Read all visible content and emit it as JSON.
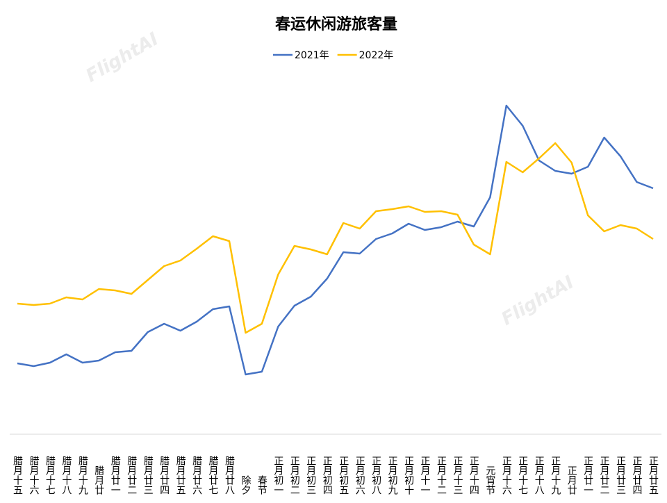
{
  "chart_data": {
    "type": "line",
    "title": "春运休闲游旅客量",
    "watermark": "FlightAI",
    "categories": [
      "腊月十五",
      "腊月十六",
      "腊月十七",
      "腊月十八",
      "腊月十九",
      "腊月廿",
      "腊月廿一",
      "腊月廿二",
      "腊月廿三",
      "腊月廿四",
      "腊月廿五",
      "腊月廿六",
      "腊月廿七",
      "腊月廿八",
      "除夕",
      "春节",
      "正月初一",
      "正月初二",
      "正月初三",
      "正月初四",
      "正月初五",
      "正月初六",
      "正月初八",
      "正月初九",
      "正月初十",
      "正月十一",
      "正月十二",
      "正月十三",
      "正月十四",
      "元宵节",
      "正月十六",
      "正月十七",
      "正月十八",
      "正月十九",
      "正月廿",
      "正月廿一",
      "正月廿二",
      "正月廿三",
      "正月廿四",
      "正月廿五"
    ],
    "series": [
      {
        "name": "2021年",
        "color": "#4472c4",
        "values": [
          97,
          93,
          98,
          110,
          98,
          101,
          113,
          115,
          142,
          154,
          144,
          157,
          175,
          179,
          81,
          85,
          150,
          180,
          193,
          219,
          257,
          255,
          276,
          284,
          298,
          289,
          293,
          301,
          294,
          336,
          468,
          439,
          389,
          374,
          370,
          380,
          422,
          395,
          358,
          349
        ]
      },
      {
        "name": "2022年",
        "color": "#ffc000",
        "values": [
          183,
          181,
          183,
          192,
          189,
          204,
          202,
          197,
          217,
          237,
          245,
          262,
          280,
          273,
          141,
          154,
          225,
          266,
          261,
          254,
          299,
          291,
          316,
          319,
          323,
          315,
          316,
          311,
          268,
          254,
          387,
          372,
          392,
          414,
          386,
          310,
          287,
          296,
          291,
          276
        ]
      }
    ]
  }
}
